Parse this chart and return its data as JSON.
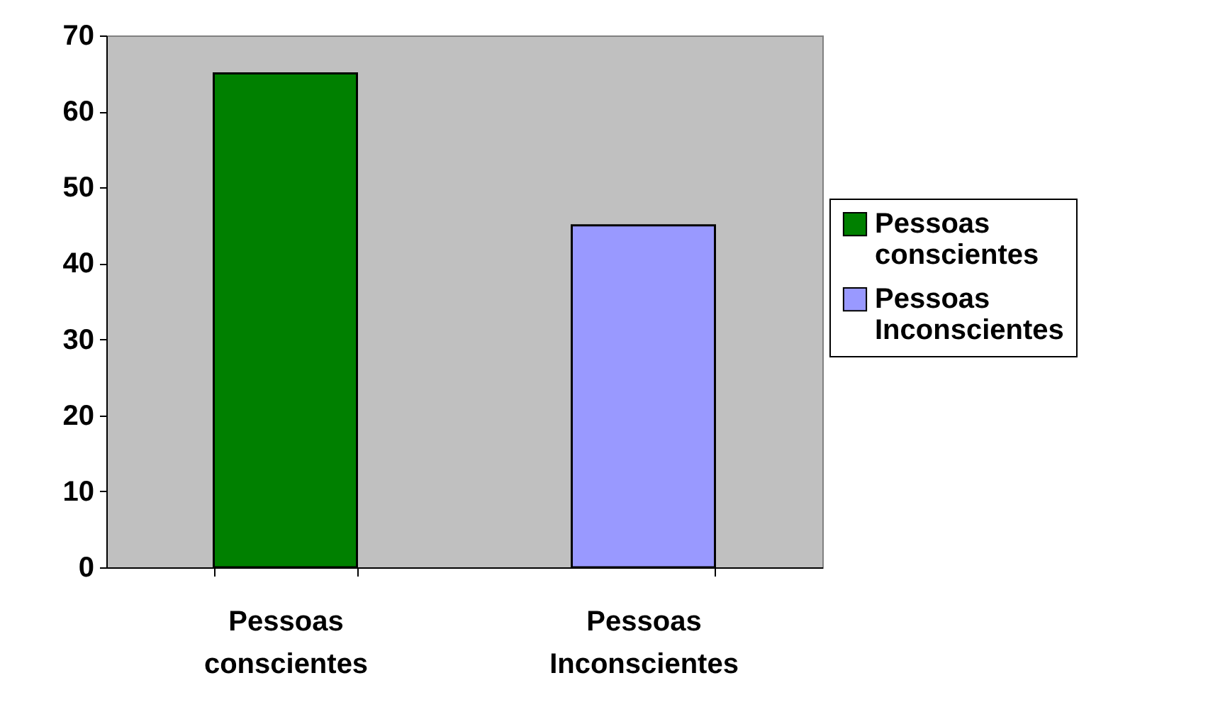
{
  "chart_data": {
    "type": "bar",
    "categories": [
      "Pessoas conscientes",
      "Pessoas Inconscientes"
    ],
    "series": [
      {
        "name": "Pessoas conscientes",
        "color": "#008000",
        "values": [
          65,
          null
        ]
      },
      {
        "name": "Pessoas Inconscientes",
        "color": "#9999ff",
        "values": [
          null,
          45
        ]
      }
    ],
    "ylim": [
      0,
      70
    ],
    "yticks": [
      0,
      10,
      20,
      30,
      40,
      50,
      60,
      70
    ],
    "grid": false,
    "legend": "right"
  }
}
